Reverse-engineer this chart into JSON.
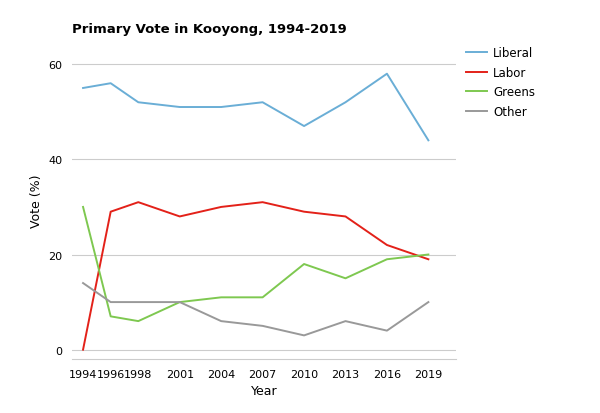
{
  "title": "Primary Vote in Kooyong, 1994-2019",
  "xlabel": "Year",
  "ylabel": "Vote (%)",
  "years": [
    1994,
    1996,
    1998,
    2001,
    2004,
    2007,
    2010,
    2013,
    2016,
    2019
  ],
  "liberal": [
    55,
    56,
    52,
    51,
    51,
    52,
    47,
    52,
    58,
    44
  ],
  "labor": [
    0,
    29,
    31,
    28,
    30,
    31,
    29,
    28,
    22,
    19
  ],
  "greens": [
    30,
    7,
    6,
    10,
    11,
    11,
    18,
    15,
    19,
    20
  ],
  "other": [
    14,
    10,
    10,
    10,
    6,
    5,
    3,
    6,
    4,
    10
  ],
  "liberal_color": "#6aaed6",
  "labor_color": "#e32119",
  "greens_color": "#7ec850",
  "other_color": "#999999",
  "bg_color": "#ffffff",
  "ylim": [
    -2,
    65
  ],
  "yticks": [
    0,
    20,
    40,
    60
  ],
  "grid_color": "#cccccc",
  "title_fontsize": 9.5,
  "axis_label_fontsize": 9,
  "tick_fontsize": 8,
  "legend_fontsize": 8.5,
  "linewidth": 1.4
}
